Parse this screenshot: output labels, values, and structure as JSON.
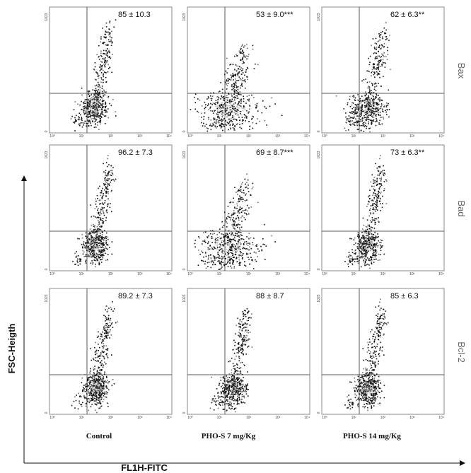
{
  "chart_data": {
    "type": "scatter",
    "xlabel": "FL1H-FITC",
    "ylabel": "FSC-Heigth",
    "columns": [
      "Control",
      "PHO-S 7 mg/Kg",
      "PHO-S 14 mg/Kg"
    ],
    "rows": [
      "Bax",
      "Bad",
      "Bcl-2"
    ],
    "x_ticks": [
      "10⁰",
      "10¹",
      "10²",
      "10³",
      "10⁴"
    ],
    "y_ticks": [
      "0",
      "1023"
    ],
    "panels": [
      {
        "row": "Bax",
        "column": "Control",
        "value": "85 ± 10.3"
      },
      {
        "row": "Bax",
        "column": "PHO-S 7 mg/Kg",
        "value": "53 ± 9.0***"
      },
      {
        "row": "Bax",
        "column": "PHO-S 14 mg/Kg",
        "value": "62 ± 6.3**"
      },
      {
        "row": "Bad",
        "column": "Control",
        "value": "96.2 ± 7.3"
      },
      {
        "row": "Bad",
        "column": "PHO-S 7 mg/Kg",
        "value": "69 ± 8.7***"
      },
      {
        "row": "Bad",
        "column": "PHO-S 14 mg/Kg",
        "value": "73 ± 6.3**"
      },
      {
        "row": "Bcl-2",
        "column": "Control",
        "value": "89.2 ± 7.3"
      },
      {
        "row": "Bcl-2",
        "column": "PHO-S 7 mg/Kg",
        "value": "88 ± 8.7"
      },
      {
        "row": "Bcl-2",
        "column": "PHO-S 14 mg/Kg",
        "value": "85 ± 6.3"
      }
    ],
    "colors": {
      "dots_dark": "#111111",
      "dots_mid": "#6e6e6e",
      "dots_light": "#b9b9b9",
      "gate": "#5a5a5a"
    }
  }
}
